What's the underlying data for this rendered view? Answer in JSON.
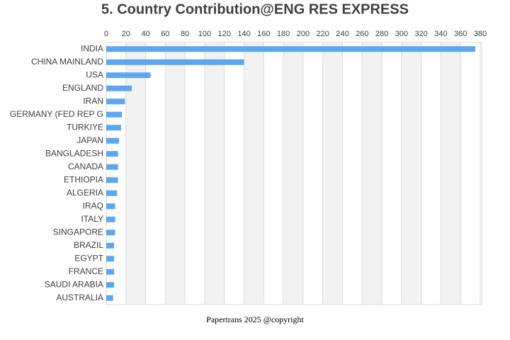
{
  "chart_data": {
    "type": "hbar",
    "title": "5. Country Contribution@ENG RES EXPRESS",
    "categories": [
      "INDIA",
      "CHINA MAINLAND",
      "USA",
      "ENGLAND",
      "IRAN",
      "GERMANY (FED REP G",
      "TURKIYE",
      "JAPAN",
      "BANGLADESH",
      "CANADA",
      "ETHIOPIA",
      "ALGERIA",
      "IRAQ",
      "ITALY",
      "SINGAPORE",
      "BRAZIL",
      "EGYPT",
      "FRANCE",
      "SAUDI ARABIA",
      "AUSTRALIA"
    ],
    "values": [
      375,
      140,
      45,
      26,
      19,
      16,
      15,
      13,
      12,
      12,
      12,
      11,
      9,
      9,
      9,
      8,
      8,
      8,
      8,
      7
    ],
    "color": "#5ea7ef",
    "xlim": [
      0,
      380
    ],
    "xticks": [
      0,
      20,
      40,
      60,
      80,
      100,
      120,
      140,
      160,
      180,
      200,
      220,
      240,
      260,
      280,
      300,
      320,
      340,
      360,
      380
    ],
    "grid": true,
    "footer": "Papertrans 2025 @copyright"
  }
}
